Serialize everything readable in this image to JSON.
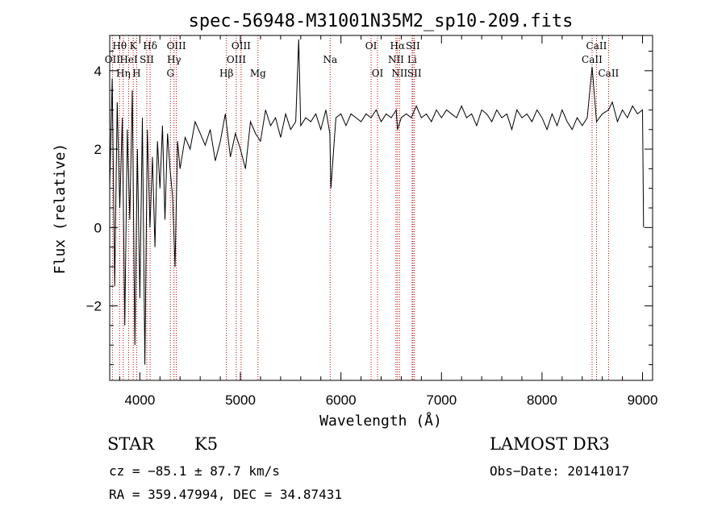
{
  "chart_data": {
    "type": "line",
    "title": "spec-56948-M31001N35M2_sp10-209.fits",
    "xlabel": "Wavelength (Å)",
    "ylabel": "Flux (relative)",
    "xlim": [
      3700,
      9100
    ],
    "ylim": [
      -3.9,
      4.9
    ],
    "xticks": [
      4000,
      5000,
      6000,
      7000,
      8000,
      9000
    ],
    "yticks": [
      -2,
      0,
      2,
      4
    ],
    "series": [
      {
        "name": "flux",
        "x": [
          3700,
          3725,
          3750,
          3775,
          3800,
          3825,
          3850,
          3875,
          3900,
          3925,
          3950,
          3975,
          4000,
          4025,
          4050,
          4075,
          4100,
          4125,
          4150,
          4175,
          4200,
          4225,
          4250,
          4275,
          4300,
          4325,
          4350,
          4375,
          4400,
          4450,
          4500,
          4550,
          4600,
          4650,
          4700,
          4750,
          4800,
          4850,
          4900,
          4950,
          5000,
          5050,
          5100,
          5150,
          5200,
          5250,
          5300,
          5350,
          5400,
          5450,
          5500,
          5550,
          5580,
          5600,
          5650,
          5700,
          5750,
          5800,
          5850,
          5890,
          5900,
          5950,
          6000,
          6050,
          6100,
          6150,
          6200,
          6250,
          6300,
          6350,
          6400,
          6450,
          6500,
          6550,
          6563,
          6600,
          6650,
          6700,
          6750,
          6800,
          6850,
          6900,
          6950,
          7000,
          7050,
          7100,
          7150,
          7200,
          7250,
          7300,
          7350,
          7400,
          7450,
          7500,
          7550,
          7600,
          7650,
          7700,
          7750,
          7800,
          7850,
          7900,
          7950,
          8000,
          8050,
          8100,
          8150,
          8200,
          8250,
          8300,
          8350,
          8400,
          8450,
          8498,
          8542,
          8600,
          8662,
          8700,
          8750,
          8800,
          8850,
          8900,
          8950,
          9000,
          9010
        ],
        "values": [
          1.0,
          3.8,
          -1.5,
          3.2,
          0.5,
          2.8,
          -2.5,
          2.5,
          0.2,
          3.5,
          -3.0,
          2.0,
          -1.8,
          2.8,
          -3.5,
          2.5,
          0.0,
          1.8,
          -0.5,
          2.2,
          1.0,
          2.6,
          0.2,
          2.4,
          1.5,
          0.8,
          -1.0,
          2.2,
          1.5,
          2.3,
          2.0,
          2.7,
          2.4,
          2.1,
          2.5,
          1.7,
          2.2,
          2.9,
          1.8,
          2.4,
          2.0,
          1.5,
          2.7,
          2.4,
          2.2,
          3.0,
          2.6,
          2.8,
          2.3,
          2.9,
          2.5,
          2.7,
          4.8,
          2.6,
          2.8,
          2.7,
          2.9,
          2.5,
          3.0,
          2.4,
          1.0,
          2.8,
          2.9,
          2.6,
          2.9,
          2.8,
          2.7,
          2.9,
          2.8,
          3.0,
          2.7,
          2.9,
          2.8,
          3.0,
          2.5,
          2.8,
          2.9,
          2.8,
          3.1,
          2.8,
          2.9,
          2.7,
          3.0,
          2.8,
          3.0,
          2.9,
          2.8,
          3.1,
          2.8,
          2.9,
          2.6,
          3.0,
          2.9,
          2.7,
          3.0,
          2.8,
          2.9,
          2.5,
          3.0,
          2.8,
          2.9,
          2.7,
          3.0,
          2.8,
          2.5,
          2.9,
          2.6,
          3.0,
          2.7,
          2.5,
          2.8,
          2.6,
          2.8,
          4.1,
          2.7,
          2.9,
          3.0,
          3.2,
          2.7,
          3.0,
          2.8,
          3.1,
          2.9,
          3.0,
          0.0
        ]
      }
    ],
    "spectral_lines": [
      {
        "label": "Hθ",
        "x": 3798,
        "row": 1
      },
      {
        "label": "OII",
        "x": 3727,
        "row": 2
      },
      {
        "label": "Hη",
        "x": 3835,
        "row": 3
      },
      {
        "label": "K",
        "x": 3934,
        "row": 1
      },
      {
        "label": "HeI",
        "x": 3889,
        "row": 2
      },
      {
        "label": "H",
        "x": 3968,
        "row": 3
      },
      {
        "label": "Hδ",
        "x": 4102,
        "row": 1
      },
      {
        "label": "SII",
        "x": 4069,
        "row": 2
      },
      {
        "label": "OIII",
        "x": 4363,
        "row": 1
      },
      {
        "label": "Hγ",
        "x": 4340,
        "row": 2
      },
      {
        "label": "G",
        "x": 4304,
        "row": 3
      },
      {
        "label": "OIII",
        "x": 5007,
        "row": 1
      },
      {
        "label": "OIII",
        "x": 4959,
        "row": 2
      },
      {
        "label": "Hβ",
        "x": 4861,
        "row": 3
      },
      {
        "label": "Mg",
        "x": 5175,
        "row": 3
      },
      {
        "label": "Na",
        "x": 5893,
        "row": 2
      },
      {
        "label": "OI",
        "x": 6300,
        "row": 1
      },
      {
        "label": "OI",
        "x": 6364,
        "row": 3
      },
      {
        "label": "Hα",
        "x": 6563,
        "row": 1
      },
      {
        "label": "SII",
        "x": 6716,
        "row": 1
      },
      {
        "label": "NII",
        "x": 6548,
        "row": 2
      },
      {
        "label": "Li",
        "x": 6708,
        "row": 2
      },
      {
        "label": "NII",
        "x": 6583,
        "row": 3
      },
      {
        "label": "SII",
        "x": 6731,
        "row": 3
      },
      {
        "label": "CaII",
        "x": 8542,
        "row": 1
      },
      {
        "label": "CaII",
        "x": 8498,
        "row": 2
      },
      {
        "label": "CaII",
        "x": 8662,
        "row": 3
      }
    ]
  },
  "info": {
    "class": "STAR",
    "subclass": "K5",
    "survey": "LAMOST DR3",
    "cz": "cz = −85.1 ± 87.7 km/s",
    "obs_date": "Obs−Date: 20141017",
    "coords": "RA = 359.47994, DEC =  34.87431"
  }
}
